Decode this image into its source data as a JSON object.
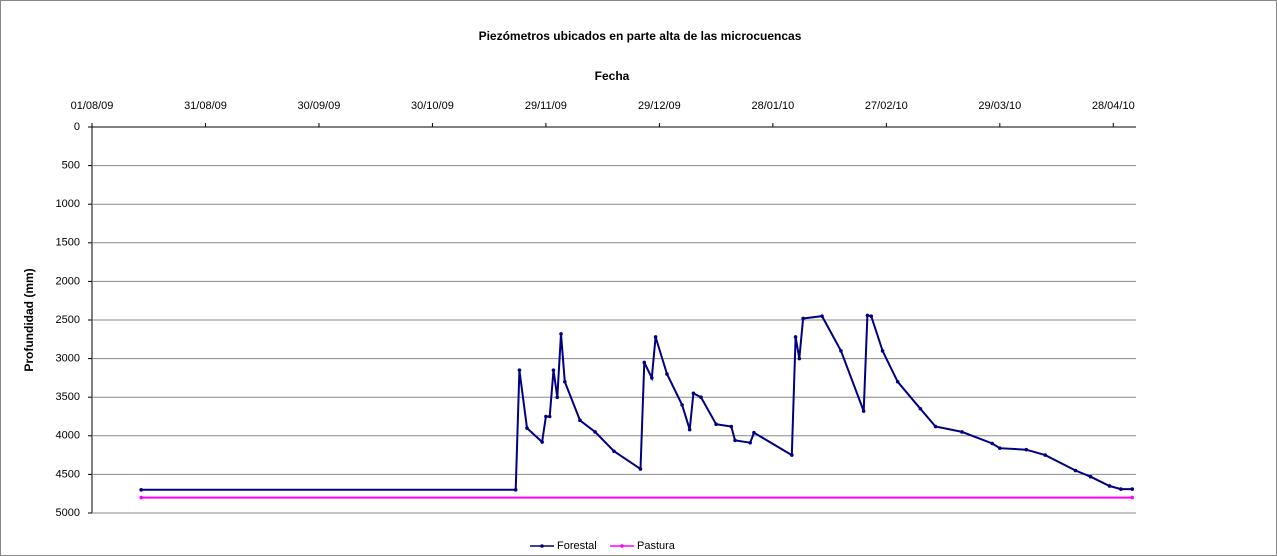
{
  "chart_data": {
    "type": "line",
    "title": "Piezómetros ubicados en parte alta de las microcuencas",
    "xlabel": "Fecha",
    "ylabel": "Profundidad (mm)",
    "xlim": [
      "01/08/09",
      "04/05/10"
    ],
    "xticks": [
      "01/08/09",
      "31/08/09",
      "30/09/09",
      "30/10/09",
      "29/11/09",
      "29/12/09",
      "28/01/10",
      "27/02/10",
      "29/03/10",
      "28/04/10"
    ],
    "ylim": [
      0,
      5000
    ],
    "yticks": [
      0,
      500,
      1000,
      1500,
      2000,
      2500,
      3000,
      3500,
      4000,
      4500,
      5000
    ],
    "y_inverted": true,
    "grid": true,
    "legend": "bottom",
    "series": [
      {
        "name": "Forestal",
        "color": "#000080",
        "x": [
          "14/08/09",
          "21/11/09",
          "22/11/09",
          "24/11/09",
          "28/11/09",
          "29/11/09",
          "30/11/09",
          "01/12/09",
          "02/12/09",
          "03/12/09",
          "04/12/09",
          "08/12/09",
          "12/12/09",
          "17/12/09",
          "24/12/09",
          "25/12/09",
          "27/12/09",
          "28/12/09",
          "31/12/09",
          "04/01/10",
          "06/01/10",
          "07/01/10",
          "09/01/10",
          "13/01/10",
          "17/01/10",
          "18/01/10",
          "22/01/10",
          "23/01/10",
          "02/02/10",
          "03/02/10",
          "04/02/10",
          "05/02/10",
          "10/02/10",
          "15/02/10",
          "21/02/10",
          "22/02/10",
          "23/02/10",
          "26/02/10",
          "02/03/10",
          "08/03/10",
          "12/03/10",
          "19/03/10",
          "27/03/10",
          "29/03/10",
          "05/04/10",
          "10/04/10",
          "18/04/10",
          "22/04/10",
          "27/04/10",
          "30/04/10",
          "03/05/10"
        ],
        "values": [
          4700,
          4700,
          3150,
          3900,
          4080,
          3750,
          3750,
          3150,
          3500,
          2680,
          3300,
          3800,
          3950,
          4200,
          4430,
          3050,
          3250,
          2720,
          3200,
          3600,
          3920,
          3450,
          3500,
          3850,
          3880,
          4060,
          4090,
          3960,
          4250,
          2720,
          3000,
          2480,
          2450,
          2900,
          3680,
          2440,
          2450,
          2900,
          3300,
          3650,
          3880,
          3950,
          4100,
          4160,
          4180,
          4250,
          4450,
          4530,
          4650,
          4690,
          4690
        ]
      },
      {
        "name": "Pastura",
        "color": "#ff00ff",
        "x": [
          "14/08/09",
          "03/05/10"
        ],
        "values": [
          4800,
          4800
        ]
      }
    ]
  }
}
